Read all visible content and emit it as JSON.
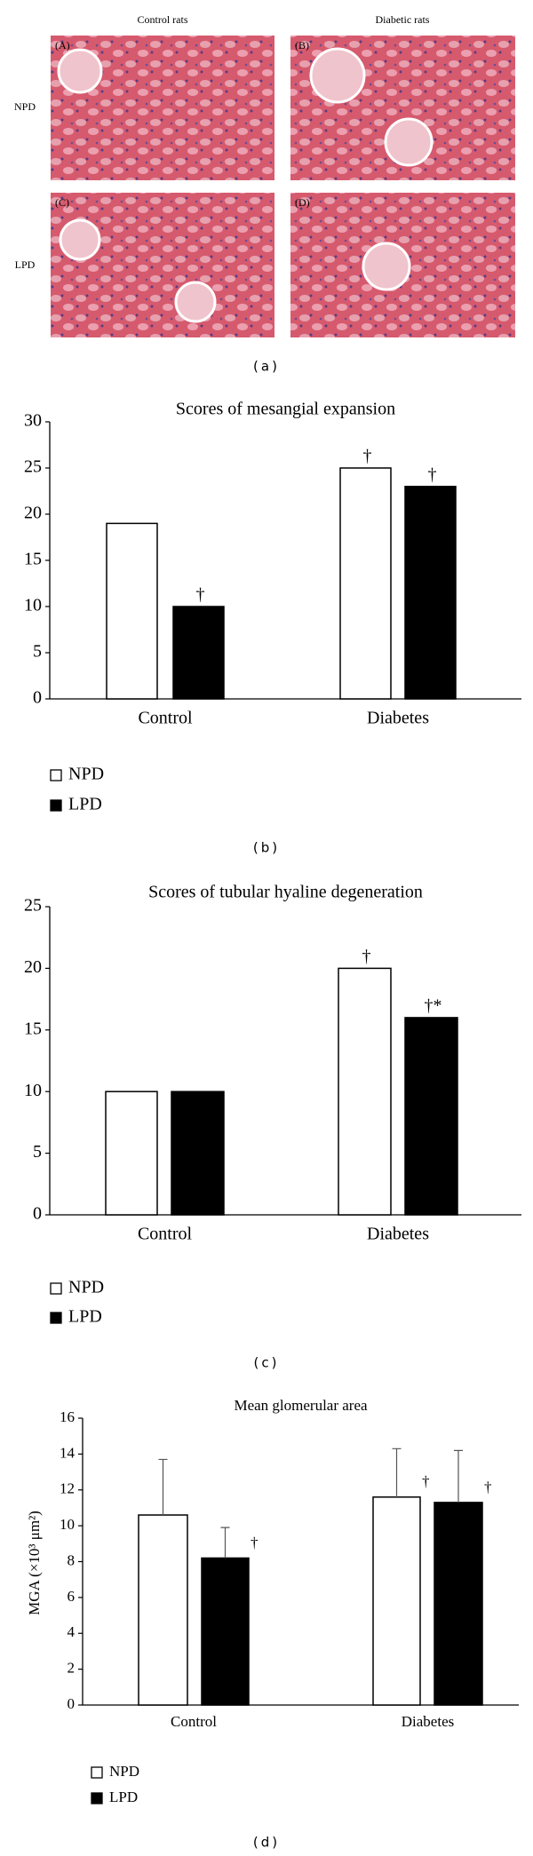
{
  "figure": {
    "columns": [
      "Control rats",
      "Diabetic rats"
    ],
    "rows": [
      "NPD",
      "LPD"
    ],
    "panels": [
      "(A)",
      "(B)",
      "(C)",
      "(D)"
    ],
    "caption": "(a)"
  },
  "chart_data": [
    {
      "type": "bar",
      "title": "Scores of mesangial expansion",
      "caption": "(b)",
      "categories": [
        "Control",
        "Diabetes"
      ],
      "series": [
        {
          "name": "NPD",
          "color": "#ffffff",
          "values": [
            19,
            25
          ],
          "annotations": [
            null,
            "†"
          ]
        },
        {
          "name": "LPD",
          "color": "#000000",
          "values": [
            10,
            23
          ],
          "annotations": [
            "†",
            "†"
          ]
        }
      ],
      "ylim": [
        0,
        30
      ],
      "yticks": [
        0,
        5,
        10,
        15,
        20,
        25,
        30
      ],
      "grid": false
    },
    {
      "type": "bar",
      "title": "Scores of tubular hyaline degeneration",
      "caption": "(c)",
      "categories": [
        "Control",
        "Diabetes"
      ],
      "series": [
        {
          "name": "NPD",
          "color": "#ffffff",
          "values": [
            10,
            20
          ],
          "annotations": [
            null,
            "†"
          ]
        },
        {
          "name": "LPD",
          "color": "#000000",
          "values": [
            10,
            16
          ],
          "annotations": [
            null,
            "†*"
          ]
        }
      ],
      "ylim": [
        0,
        25
      ],
      "yticks": [
        0,
        5,
        10,
        15,
        20,
        25
      ],
      "grid": false
    },
    {
      "type": "bar",
      "title": "Mean glomerular area",
      "caption": "(d)",
      "y_label": "MGA (×10³ μm²)",
      "categories": [
        "Control",
        "Diabetes"
      ],
      "series": [
        {
          "name": "NPD",
          "color": "#ffffff",
          "values": [
            10.6,
            11.6
          ],
          "errors": [
            3.1,
            2.7
          ],
          "annotations": [
            null,
            "†"
          ]
        },
        {
          "name": "LPD",
          "color": "#000000",
          "values": [
            8.2,
            11.3
          ],
          "errors": [
            1.7,
            2.9
          ],
          "annotations": [
            "†",
            "†"
          ]
        }
      ],
      "ylim": [
        0,
        16
      ],
      "yticks": [
        0,
        2,
        4,
        6,
        8,
        10,
        12,
        14,
        16
      ],
      "grid": false
    }
  ]
}
